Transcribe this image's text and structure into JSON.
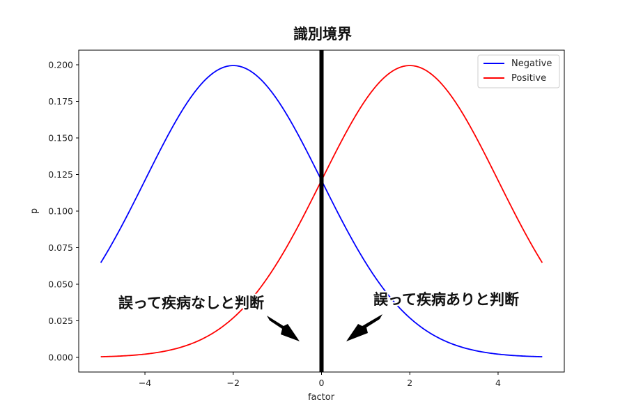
{
  "chart_data": {
    "type": "line",
    "title": "識別境界",
    "xlabel": "factor",
    "ylabel": "p",
    "xlim": [
      -5.5,
      5.5
    ],
    "ylim": [
      -0.01,
      0.21
    ],
    "x_ticks": [
      -4,
      -2,
      0,
      2,
      4
    ],
    "x_tick_labels": [
      "−4",
      "−2",
      "0",
      "2",
      "4"
    ],
    "y_ticks": [
      0.0,
      0.025,
      0.05,
      0.075,
      0.1,
      0.125,
      0.15,
      0.175,
      0.2
    ],
    "y_tick_labels": [
      "0.000",
      "0.025",
      "0.050",
      "0.075",
      "0.100",
      "0.125",
      "0.150",
      "0.175",
      "0.200"
    ],
    "grid": false,
    "legend_position": "top-right",
    "series": [
      {
        "name": "Negative",
        "color": "#0000ff",
        "distribution": "normal",
        "mean": -2,
        "sd": 2,
        "x_range": [
          -5,
          5
        ]
      },
      {
        "name": "Positive",
        "color": "#ff0000",
        "distribution": "normal",
        "mean": 2,
        "sd": 2,
        "x_range": [
          -5,
          5
        ]
      }
    ],
    "boundary": {
      "x": 0,
      "color": "#000000"
    },
    "annotations": [
      {
        "text": "誤って疾病なしと判断",
        "target": [
          -0.5,
          0.01
        ]
      },
      {
        "text": "誤って疾病ありと判断",
        "target": [
          0.5,
          0.01
        ]
      }
    ]
  }
}
